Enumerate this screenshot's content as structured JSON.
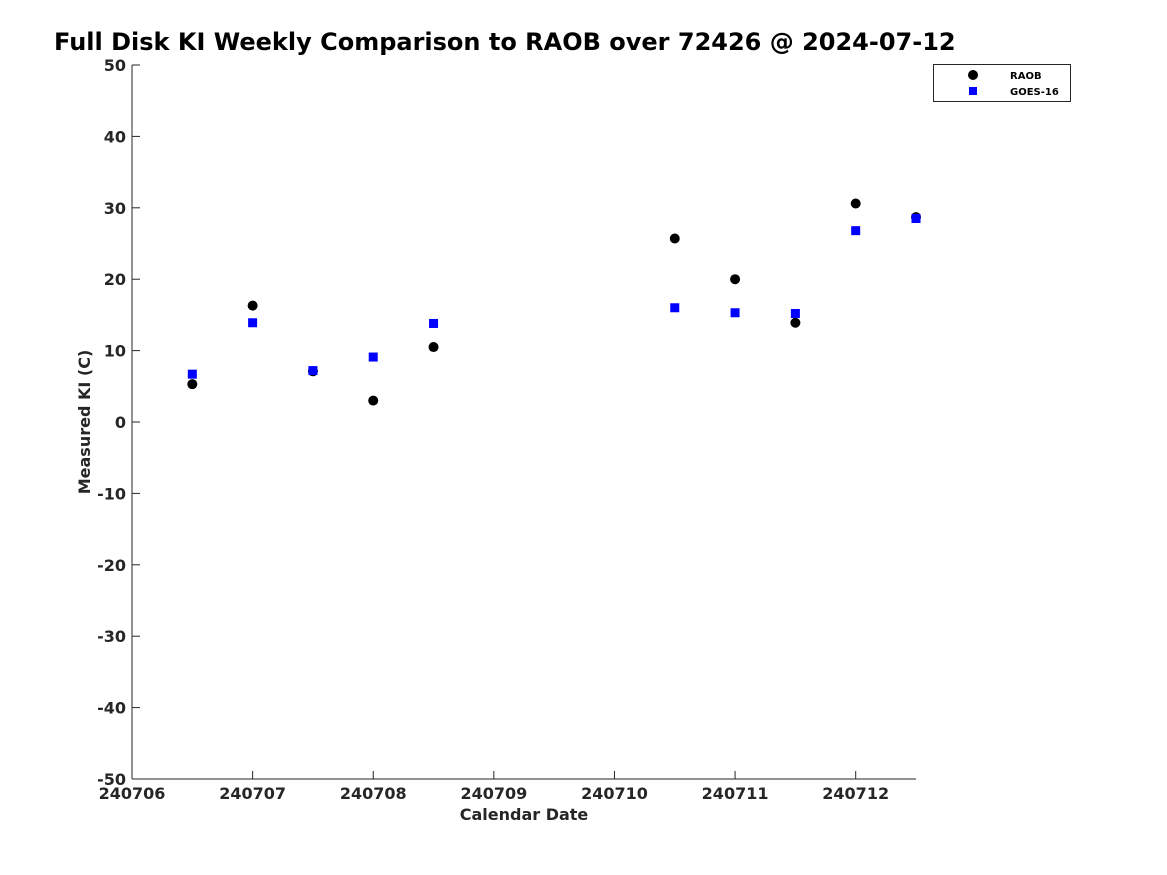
{
  "chart_data": {
    "type": "scatter",
    "title": "Full Disk KI Weekly Comparison to RAOB over 72426 @ 2024-07-12",
    "xlabel": "Calendar Date",
    "ylabel": "Measured KI (C)",
    "x_ticks": [
      "240706",
      "240707",
      "240708",
      "240709",
      "240710",
      "240711",
      "240712"
    ],
    "x_range": [
      "240706",
      "240712.5"
    ],
    "ylim": [
      -50,
      50
    ],
    "y_ticks": [
      50,
      40,
      30,
      20,
      10,
      0,
      -10,
      -20,
      -30,
      -40,
      -50
    ],
    "grid": false,
    "legend_position": "top-right",
    "series": [
      {
        "name": "RAOB",
        "marker": "circle",
        "color": "#000000",
        "points": [
          {
            "x": "240706.5",
            "y": 5.3
          },
          {
            "x": "240707",
            "y": 16.3
          },
          {
            "x": "240707.5",
            "y": 7.1
          },
          {
            "x": "240708",
            "y": 3.0
          },
          {
            "x": "240708.5",
            "y": 10.5
          },
          {
            "x": "240710.5",
            "y": 25.7
          },
          {
            "x": "240711",
            "y": 20.0
          },
          {
            "x": "240711.5",
            "y": 13.9
          },
          {
            "x": "240712",
            "y": 30.6
          },
          {
            "x": "240712.5",
            "y": 28.7
          }
        ]
      },
      {
        "name": "GOES-16",
        "marker": "square",
        "color": "#0000ff",
        "points": [
          {
            "x": "240706.5",
            "y": 6.7
          },
          {
            "x": "240707",
            "y": 13.9
          },
          {
            "x": "240707.5",
            "y": 7.2
          },
          {
            "x": "240708",
            "y": 9.1
          },
          {
            "x": "240708.5",
            "y": 13.8
          },
          {
            "x": "240710.5",
            "y": 16.0
          },
          {
            "x": "240711",
            "y": 15.3
          },
          {
            "x": "240711.5",
            "y": 15.2
          },
          {
            "x": "240712",
            "y": 26.8
          },
          {
            "x": "240712.5",
            "y": 28.5
          }
        ]
      }
    ]
  }
}
